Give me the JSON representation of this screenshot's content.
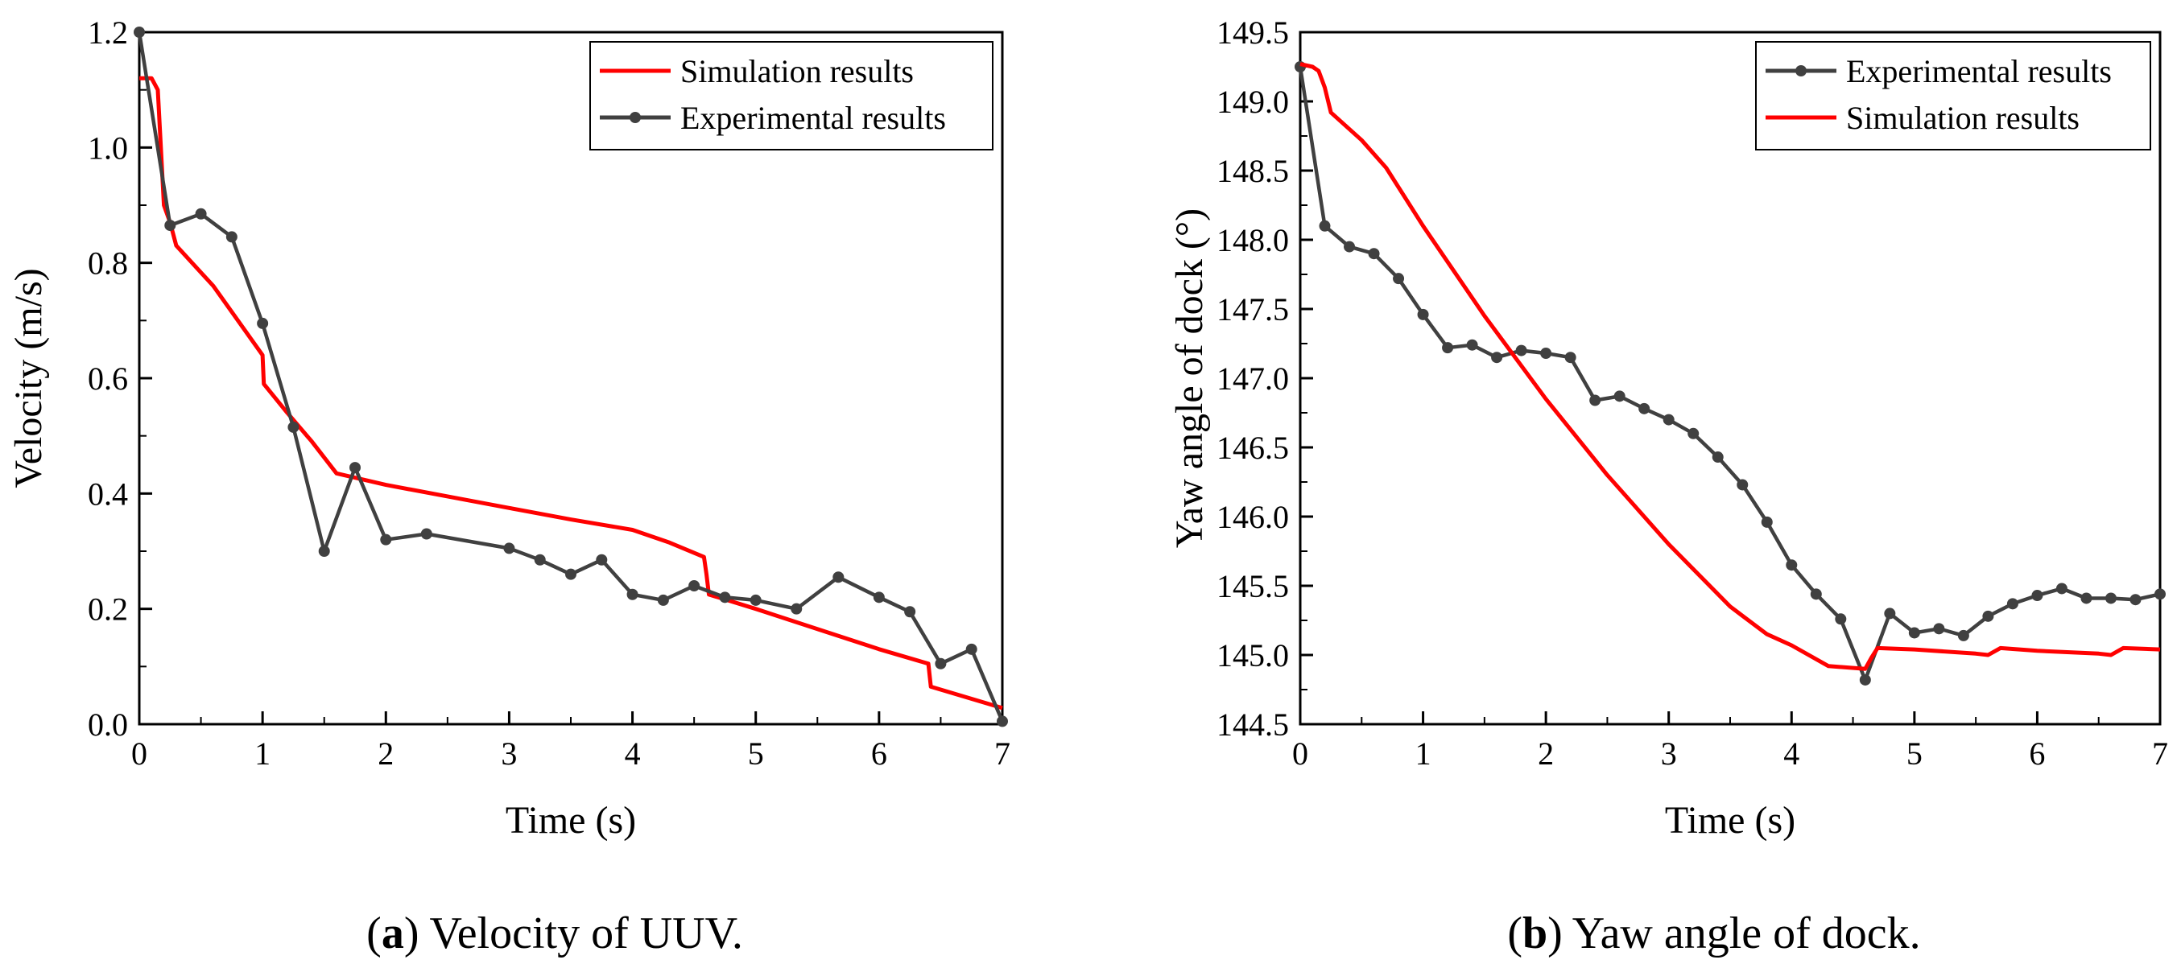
{
  "chart_data": [
    {
      "type": "line",
      "panel_label": "a",
      "caption": "Velocity of UUV.",
      "xlabel": "Time (s)",
      "ylabel": "Velocity (m/s)",
      "xlim": [
        0,
        7
      ],
      "ylim": [
        0,
        1.2
      ],
      "xticks": [
        "0",
        "1",
        "2",
        "3",
        "4",
        "5",
        "6",
        "7"
      ],
      "yticks": [
        "0.0",
        "0.2",
        "0.4",
        "0.6",
        "0.8",
        "1.0",
        "1.2"
      ],
      "legend_position": "top-right",
      "series": [
        {
          "name": "Simulation results",
          "color": "#ff0000",
          "marker": "none",
          "x": [
            0,
            0.1,
            0.15,
            0.2,
            0.25,
            0.3,
            0.6,
            0.8,
            1.0,
            1.01,
            1.2,
            1.4,
            1.6,
            1.8,
            2.0,
            2.5,
            3.0,
            3.5,
            4.0,
            4.3,
            4.58,
            4.6,
            4.62,
            5.0,
            5.5,
            6.0,
            6.4,
            6.42,
            7.0
          ],
          "y": [
            1.12,
            1.12,
            1.1,
            0.9,
            0.87,
            0.83,
            0.76,
            0.7,
            0.64,
            0.59,
            0.54,
            0.49,
            0.435,
            0.425,
            0.415,
            0.395,
            0.375,
            0.355,
            0.337,
            0.315,
            0.29,
            0.26,
            0.225,
            0.2,
            0.165,
            0.13,
            0.105,
            0.065,
            0.028
          ]
        },
        {
          "name": "Experimental results",
          "color": "#404040",
          "marker": "circle",
          "x": [
            0,
            0.25,
            0.5,
            0.75,
            1.0,
            1.25,
            1.5,
            1.75,
            2.0,
            2.33,
            3.0,
            3.25,
            3.5,
            3.75,
            4.0,
            4.25,
            4.5,
            4.75,
            5.0,
            5.33,
            5.67,
            6.0,
            6.25,
            6.5,
            6.75,
            7.0
          ],
          "y": [
            1.2,
            0.865,
            0.885,
            0.845,
            0.695,
            0.515,
            0.3,
            0.445,
            0.32,
            0.33,
            0.305,
            0.285,
            0.26,
            0.285,
            0.225,
            0.215,
            0.24,
            0.22,
            0.215,
            0.2,
            0.255,
            0.22,
            0.195,
            0.105,
            0.13,
            0.005
          ]
        }
      ]
    },
    {
      "type": "line",
      "panel_label": "b",
      "caption": "Yaw angle of dock.",
      "xlabel": "Time (s)",
      "ylabel": "Yaw angle of dock (°)",
      "xlim": [
        0,
        7
      ],
      "ylim": [
        144.5,
        149.5
      ],
      "xticks": [
        "0",
        "1",
        "2",
        "3",
        "4",
        "5",
        "6",
        "7"
      ],
      "yticks": [
        "144.5",
        "145.0",
        "145.5",
        "146.0",
        "146.5",
        "147.0",
        "147.5",
        "148.0",
        "148.5",
        "149.0",
        "149.5"
      ],
      "legend_position": "top-right",
      "series": [
        {
          "name": "Experimental results",
          "color": "#404040",
          "marker": "circle",
          "x": [
            0,
            0.2,
            0.4,
            0.6,
            0.8,
            1.0,
            1.2,
            1.4,
            1.6,
            1.8,
            2.0,
            2.2,
            2.4,
            2.6,
            2.8,
            3.0,
            3.2,
            3.4,
            3.6,
            3.8,
            4.0,
            4.2,
            4.4,
            4.6,
            4.8,
            5.0,
            5.2,
            5.4,
            5.6,
            5.8,
            6.0,
            6.2,
            6.4,
            6.6,
            6.8,
            7.0
          ],
          "y": [
            149.25,
            148.1,
            147.95,
            147.9,
            147.72,
            147.46,
            147.22,
            147.24,
            147.15,
            147.2,
            147.18,
            147.15,
            146.84,
            146.87,
            146.78,
            146.7,
            146.6,
            146.43,
            146.23,
            145.96,
            145.65,
            145.44,
            145.26,
            144.82,
            145.3,
            145.16,
            145.19,
            145.14,
            145.28,
            145.37,
            145.43,
            145.48,
            145.41,
            145.41,
            145.4,
            145.44
          ]
        },
        {
          "name": "Simulation results",
          "color": "#ff0000",
          "marker": "none",
          "x": [
            0,
            0.1,
            0.15,
            0.2,
            0.25,
            0.5,
            0.7,
            1.0,
            1.5,
            2.0,
            2.5,
            3.0,
            3.5,
            3.8,
            4.0,
            4.3,
            4.6,
            4.65,
            4.7,
            5.0,
            5.5,
            5.6,
            5.7,
            6.0,
            6.5,
            6.6,
            6.7,
            7.0
          ],
          "y": [
            149.27,
            149.25,
            149.22,
            149.1,
            148.92,
            148.72,
            148.52,
            148.1,
            147.45,
            146.85,
            146.3,
            145.8,
            145.35,
            145.15,
            145.07,
            144.92,
            144.9,
            144.98,
            145.05,
            145.04,
            145.01,
            145.0,
            145.05,
            145.03,
            145.01,
            145.0,
            145.05,
            145.04
          ]
        }
      ]
    }
  ]
}
